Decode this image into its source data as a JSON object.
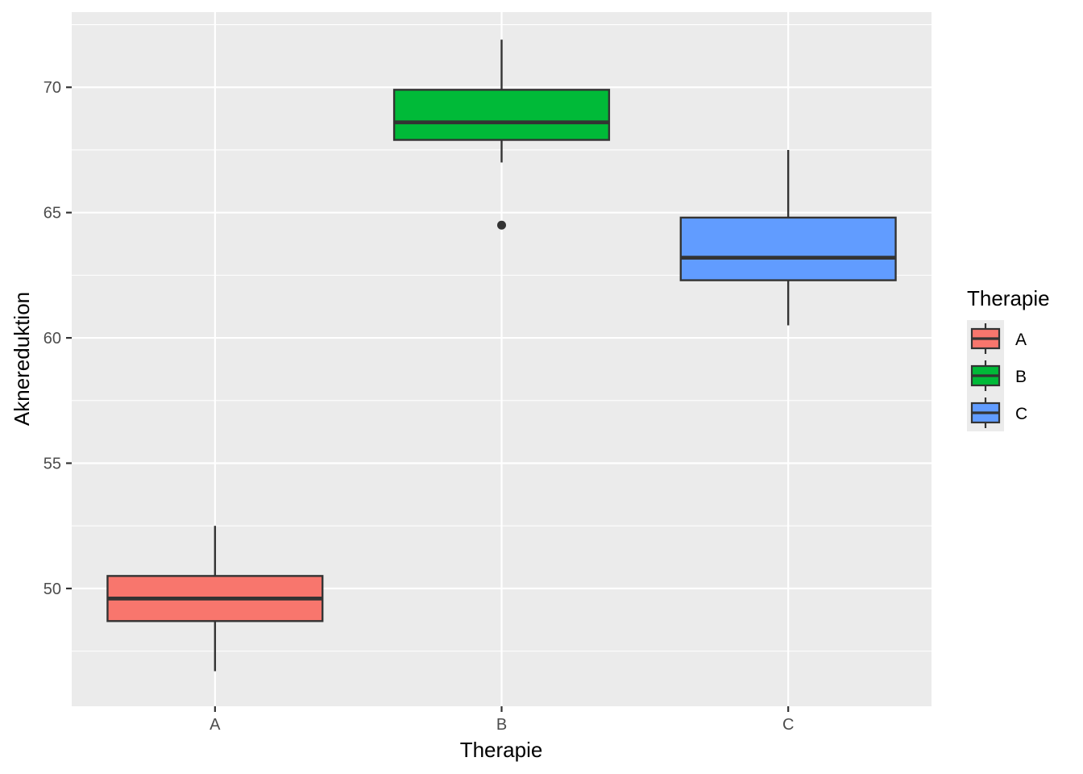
{
  "chart_data": {
    "type": "boxplot",
    "xlabel": "Therapie",
    "ylabel": "Aknereduktion",
    "categories": [
      "A",
      "B",
      "C"
    ],
    "ylim": [
      45.3,
      73.0
    ],
    "y_ticks": [
      50,
      55,
      60,
      65,
      70
    ],
    "grid": true,
    "legend": {
      "title": "Therapie",
      "position": "right",
      "entries": [
        "A",
        "B",
        "C"
      ]
    },
    "colors": {
      "A": "#F8766D",
      "B": "#00BA38",
      "C": "#619CFF",
      "panel_bg": "#EBEBEB",
      "grid": "#FFFFFF",
      "outline": "#333333"
    },
    "series": [
      {
        "category": "A",
        "whisker_low": 46.7,
        "q1": 48.7,
        "median": 49.6,
        "q3": 50.5,
        "whisker_high": 52.5,
        "outliers": []
      },
      {
        "category": "B",
        "whisker_low": 67.0,
        "q1": 67.9,
        "median": 68.6,
        "q3": 69.9,
        "whisker_high": 71.9,
        "outliers": [
          64.5
        ]
      },
      {
        "category": "C",
        "whisker_low": 60.5,
        "q1": 62.3,
        "median": 63.2,
        "q3": 64.8,
        "whisker_high": 67.5,
        "outliers": []
      }
    ]
  }
}
